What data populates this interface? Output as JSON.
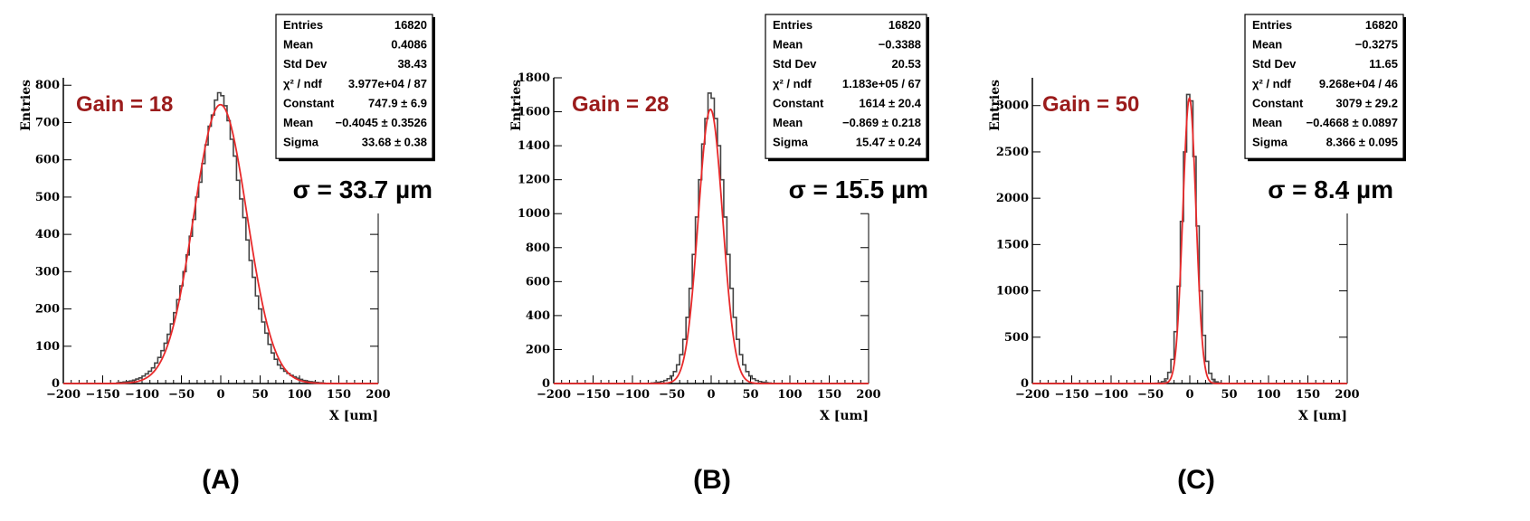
{
  "colors": {
    "histogram": "#444444",
    "fit": "#e8292a",
    "gain_text": "#9b1c1c",
    "frame": "#000000"
  },
  "chart_data": [
    {
      "type": "histogram",
      "panel_label": "(A)",
      "gain_label": "Gain = 18",
      "sigma_label": "σ = 33.7 µm",
      "xlabel": "X [um]",
      "ylabel": "Entries",
      "xlim": [
        -200,
        200
      ],
      "ylim": [
        0,
        820
      ],
      "xticks": [
        -200,
        -150,
        -100,
        -50,
        0,
        50,
        100,
        150,
        200
      ],
      "xtick_labels": [
        "−200",
        "−150",
        "−100",
        "−50",
        "0",
        "50",
        "100",
        "150",
        "200"
      ],
      "yticks": [
        0,
        100,
        200,
        300,
        400,
        500,
        600,
        700,
        800
      ],
      "ytick_labels": [
        "0",
        "100",
        "200",
        "300",
        "400",
        "500",
        "600",
        "700",
        "800"
      ],
      "bin_width": 4,
      "hist_x": [
        -130,
        -126,
        -122,
        -118,
        -114,
        -110,
        -106,
        -102,
        -98,
        -94,
        -90,
        -86,
        -82,
        -78,
        -74,
        -70,
        -66,
        -62,
        -58,
        -54,
        -50,
        -46,
        -42,
        -38,
        -34,
        -30,
        -26,
        -22,
        -18,
        -14,
        -10,
        -6,
        -2,
        2,
        6,
        10,
        14,
        18,
        22,
        26,
        30,
        34,
        38,
        42,
        46,
        50,
        54,
        58,
        62,
        66,
        70,
        74,
        78,
        82,
        86,
        90,
        94,
        98,
        102,
        106,
        110,
        114,
        118,
        122,
        126,
        130
      ],
      "hist_y": [
        2,
        3,
        4,
        5,
        7,
        9,
        12,
        15,
        20,
        26,
        33,
        42,
        55,
        70,
        88,
        108,
        132,
        160,
        190,
        225,
        262,
        300,
        345,
        395,
        440,
        500,
        540,
        590,
        640,
        690,
        720,
        760,
        780,
        772,
        745,
        705,
        655,
        610,
        545,
        495,
        445,
        385,
        330,
        285,
        235,
        200,
        165,
        135,
        105,
        82,
        65,
        50,
        40,
        33,
        27,
        22,
        18,
        14,
        11,
        8,
        6,
        5,
        4,
        3,
        2,
        1
      ],
      "fit": {
        "function": "gaus",
        "constant": 747.9,
        "mean": -0.4045,
        "sigma": 33.68
      },
      "stats": [
        {
          "label": "Entries",
          "value": "16820"
        },
        {
          "label": "Mean",
          "value": "0.4086"
        },
        {
          "label": "Std Dev",
          "value": "38.43"
        },
        {
          "label": "χ² / ndf",
          "value": "3.977e+04 / 87"
        },
        {
          "label": "Constant",
          "value": "747.9 ± 6.9"
        },
        {
          "label": "Mean",
          "value": "−0.4045 ± 0.3526"
        },
        {
          "label": "Sigma",
          "value": "33.68 ± 0.38"
        }
      ]
    },
    {
      "type": "histogram",
      "panel_label": "(B)",
      "gain_label": "Gain = 28",
      "sigma_label": "σ = 15.5 µm",
      "xlabel": "X [um]",
      "ylabel": "Entries",
      "xlim": [
        -200,
        200
      ],
      "ylim": [
        0,
        1800
      ],
      "xticks": [
        -200,
        -150,
        -100,
        -50,
        0,
        50,
        100,
        150,
        200
      ],
      "xtick_labels": [
        "−200",
        "−150",
        "−100",
        "−50",
        "0",
        "50",
        "100",
        "150",
        "200"
      ],
      "yticks": [
        0,
        200,
        400,
        600,
        800,
        1000,
        1200,
        1400,
        1600,
        1800
      ],
      "ytick_labels": [
        "0",
        "200",
        "400",
        "600",
        "800",
        "1000",
        "1200",
        "1400",
        "1600",
        "1800"
      ],
      "bin_width": 4,
      "hist_x": [
        -74,
        -70,
        -66,
        -62,
        -58,
        -54,
        -50,
        -46,
        -42,
        -38,
        -34,
        -30,
        -26,
        -22,
        -18,
        -14,
        -10,
        -6,
        -2,
        2,
        6,
        10,
        14,
        18,
        22,
        26,
        30,
        34,
        38,
        42,
        46,
        50,
        54,
        58,
        62,
        66,
        70,
        74
      ],
      "hist_y": [
        3,
        5,
        8,
        12,
        18,
        28,
        45,
        70,
        110,
        170,
        260,
        390,
        560,
        760,
        980,
        1200,
        1410,
        1560,
        1710,
        1680,
        1560,
        1400,
        1200,
        980,
        760,
        560,
        390,
        260,
        170,
        110,
        70,
        45,
        28,
        18,
        12,
        8,
        5,
        3
      ],
      "fit": {
        "function": "gaus",
        "constant": 1614,
        "mean": -0.869,
        "sigma": 15.47
      },
      "stats": [
        {
          "label": "Entries",
          "value": "16820"
        },
        {
          "label": "Mean",
          "value": "−0.3388"
        },
        {
          "label": "Std Dev",
          "value": "20.53"
        },
        {
          "label": "χ² / ndf",
          "value": "1.183e+05 / 67"
        },
        {
          "label": "Constant",
          "value": "1614 ± 20.4"
        },
        {
          "label": "Mean",
          "value": "−0.869 ± 0.218"
        },
        {
          "label": "Sigma",
          "value": "15.47 ± 0.24"
        }
      ]
    },
    {
      "type": "histogram",
      "panel_label": "(C)",
      "gain_label": "Gain = 50",
      "sigma_label": "σ = 8.4 µm",
      "xlabel": "X [um]",
      "ylabel": "Entries",
      "xlim": [
        -200,
        200
      ],
      "ylim": [
        0,
        3300
      ],
      "xticks": [
        -200,
        -150,
        -100,
        -50,
        0,
        50,
        100,
        150,
        200
      ],
      "xtick_labels": [
        "−200",
        "−150",
        "−100",
        "−50",
        "0",
        "50",
        "100",
        "150",
        "200"
      ],
      "yticks": [
        0,
        500,
        1000,
        1500,
        2000,
        2500,
        3000
      ],
      "ytick_labels": [
        "0",
        "500",
        "1000",
        "1500",
        "2000",
        "2500",
        "3000"
      ],
      "bin_width": 4,
      "hist_x": [
        -42,
        -38,
        -34,
        -30,
        -26,
        -22,
        -18,
        -14,
        -10,
        -6,
        -2,
        2,
        6,
        10,
        14,
        18,
        22,
        26,
        30,
        34,
        38,
        42
      ],
      "hist_y": [
        3,
        8,
        20,
        50,
        120,
        260,
        560,
        1050,
        1750,
        2500,
        3120,
        3050,
        2450,
        1700,
        1000,
        520,
        240,
        110,
        45,
        18,
        7,
        2
      ],
      "fit": {
        "function": "gaus",
        "constant": 3079,
        "mean": -0.4668,
        "sigma": 8.366
      },
      "stats": [
        {
          "label": "Entries",
          "value": "16820"
        },
        {
          "label": "Mean",
          "value": "−0.3275"
        },
        {
          "label": "Std Dev",
          "value": "11.65"
        },
        {
          "label": "χ² / ndf",
          "value": "9.268e+04 / 46"
        },
        {
          "label": "Constant",
          "value": "3079 ± 29.2"
        },
        {
          "label": "Mean",
          "value": "−0.4668 ± 0.0897"
        },
        {
          "label": "Sigma",
          "value": "8.366 ± 0.095"
        }
      ]
    }
  ]
}
